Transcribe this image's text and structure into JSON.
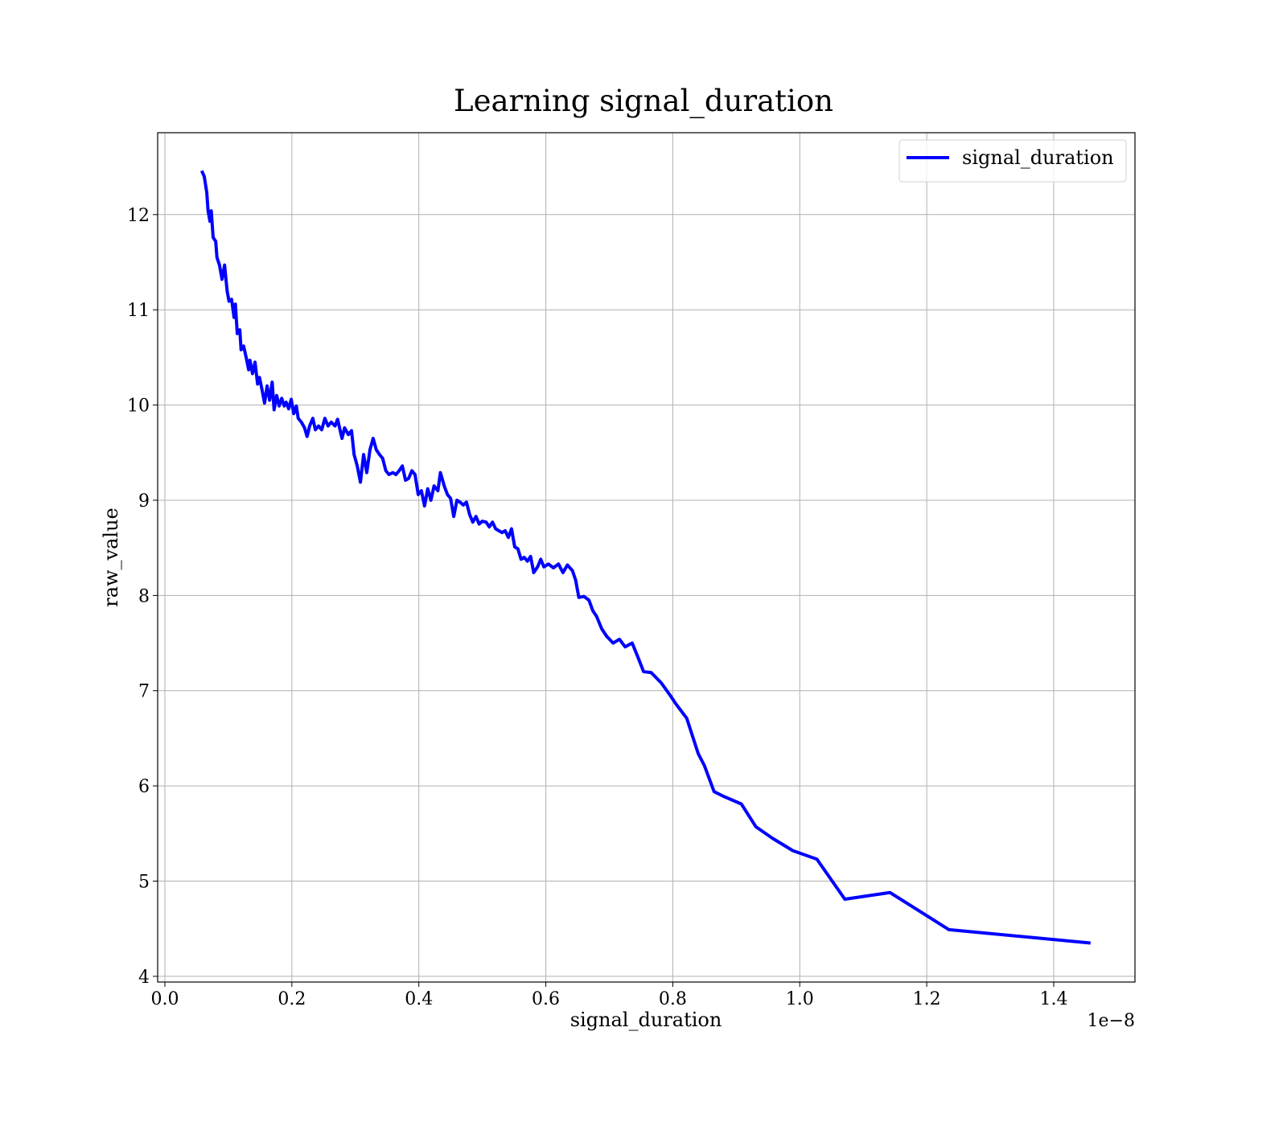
{
  "chart_data": {
    "type": "line",
    "title": "Learning signal_duration",
    "x_label": "signal_duration",
    "y_label": "raw_value",
    "x_offset_label": "1e−8",
    "xlim": [
      -0.0114,
      1.528
    ],
    "ylim": [
      3.94,
      12.86
    ],
    "xticks": [
      {
        "value": 0,
        "label": "0.0"
      },
      0.2,
      0.4,
      0.6,
      0.8,
      {
        "value": 1,
        "label": "1.0"
      },
      1.2,
      1.4
    ],
    "yticks": [
      4,
      5,
      6,
      7,
      8,
      9,
      10,
      11,
      12
    ],
    "grid": true,
    "legend_position": "upper right",
    "x": [
      0.058,
      0.062,
      0.066,
      0.068,
      0.071,
      0.073,
      0.076,
      0.08,
      0.082,
      0.086,
      0.09,
      0.094,
      0.098,
      0.101,
      0.105,
      0.109,
      0.111,
      0.114,
      0.118,
      0.12,
      0.124,
      0.128,
      0.132,
      0.134,
      0.138,
      0.142,
      0.146,
      0.149,
      0.153,
      0.157,
      0.161,
      0.165,
      0.169,
      0.172,
      0.176,
      0.18,
      0.184,
      0.188,
      0.191,
      0.195,
      0.199,
      0.203,
      0.207,
      0.21,
      0.215,
      0.22,
      0.224,
      0.228,
      0.233,
      0.237,
      0.242,
      0.247,
      0.252,
      0.257,
      0.262,
      0.268,
      0.272,
      0.279,
      0.283,
      0.289,
      0.294,
      0.298,
      0.303,
      0.308,
      0.313,
      0.318,
      0.323,
      0.328,
      0.333,
      0.338,
      0.343,
      0.348,
      0.353,
      0.359,
      0.364,
      0.369,
      0.374,
      0.379,
      0.384,
      0.389,
      0.394,
      0.399,
      0.404,
      0.409,
      0.414,
      0.419,
      0.424,
      0.43,
      0.434,
      0.44,
      0.445,
      0.45,
      0.455,
      0.46,
      0.465,
      0.47,
      0.475,
      0.48,
      0.485,
      0.49,
      0.495,
      0.5,
      0.506,
      0.511,
      0.516,
      0.521,
      0.526,
      0.531,
      0.536,
      0.541,
      0.546,
      0.551,
      0.556,
      0.561,
      0.566,
      0.571,
      0.576,
      0.581,
      0.587,
      0.592,
      0.597,
      0.604,
      0.612,
      0.62,
      0.627,
      0.634,
      0.642,
      0.647,
      0.652,
      0.66,
      0.668,
      0.674,
      0.68,
      0.688,
      0.696,
      0.706,
      0.716,
      0.725,
      0.736,
      0.744,
      0.754,
      0.766,
      0.782,
      0.797,
      0.805,
      0.822,
      0.84,
      0.85,
      0.865,
      0.88,
      0.908,
      0.931,
      0.957,
      0.989,
      1.027,
      1.071,
      1.142,
      1.235,
      1.458
    ],
    "series": [
      {
        "name": "signal_duration",
        "color": "#0000ff",
        "values": [
          12.46,
          12.4,
          12.23,
          12.04,
          11.93,
          12.04,
          11.76,
          11.72,
          11.55,
          11.47,
          11.32,
          11.47,
          11.2,
          11.09,
          11.11,
          10.92,
          11.06,
          10.75,
          10.79,
          10.58,
          10.62,
          10.5,
          10.37,
          10.47,
          10.33,
          10.45,
          10.22,
          10.29,
          10.16,
          10.02,
          10.2,
          10.05,
          10.24,
          9.95,
          10.1,
          9.99,
          10.07,
          9.99,
          10.03,
          9.96,
          10.06,
          9.91,
          9.99,
          9.86,
          9.82,
          9.76,
          9.67,
          9.78,
          9.86,
          9.74,
          9.78,
          9.74,
          9.86,
          9.78,
          9.82,
          9.78,
          9.85,
          9.65,
          9.76,
          9.69,
          9.73,
          9.48,
          9.36,
          9.19,
          9.48,
          9.29,
          9.53,
          9.65,
          9.53,
          9.48,
          9.44,
          9.31,
          9.27,
          9.29,
          9.27,
          9.31,
          9.36,
          9.21,
          9.23,
          9.31,
          9.27,
          9.06,
          9.1,
          8.94,
          9.12,
          9.0,
          9.15,
          9.1,
          9.29,
          9.15,
          9.06,
          9.02,
          8.83,
          9.0,
          8.98,
          8.95,
          8.98,
          8.85,
          8.77,
          8.83,
          8.75,
          8.78,
          8.77,
          8.72,
          8.77,
          8.7,
          8.68,
          8.66,
          8.68,
          8.61,
          8.7,
          8.51,
          8.49,
          8.38,
          8.4,
          8.36,
          8.41,
          8.24,
          8.3,
          8.38,
          8.3,
          8.33,
          8.29,
          8.33,
          8.24,
          8.32,
          8.26,
          8.16,
          7.98,
          7.99,
          7.95,
          7.84,
          7.78,
          7.65,
          7.57,
          7.5,
          7.54,
          7.46,
          7.5,
          7.37,
          7.2,
          7.19,
          7.08,
          6.94,
          6.86,
          6.71,
          6.34,
          6.21,
          5.94,
          5.89,
          5.81,
          5.57,
          5.45,
          5.32,
          5.23,
          4.81,
          4.88,
          4.49,
          4.35
        ]
      }
    ]
  }
}
